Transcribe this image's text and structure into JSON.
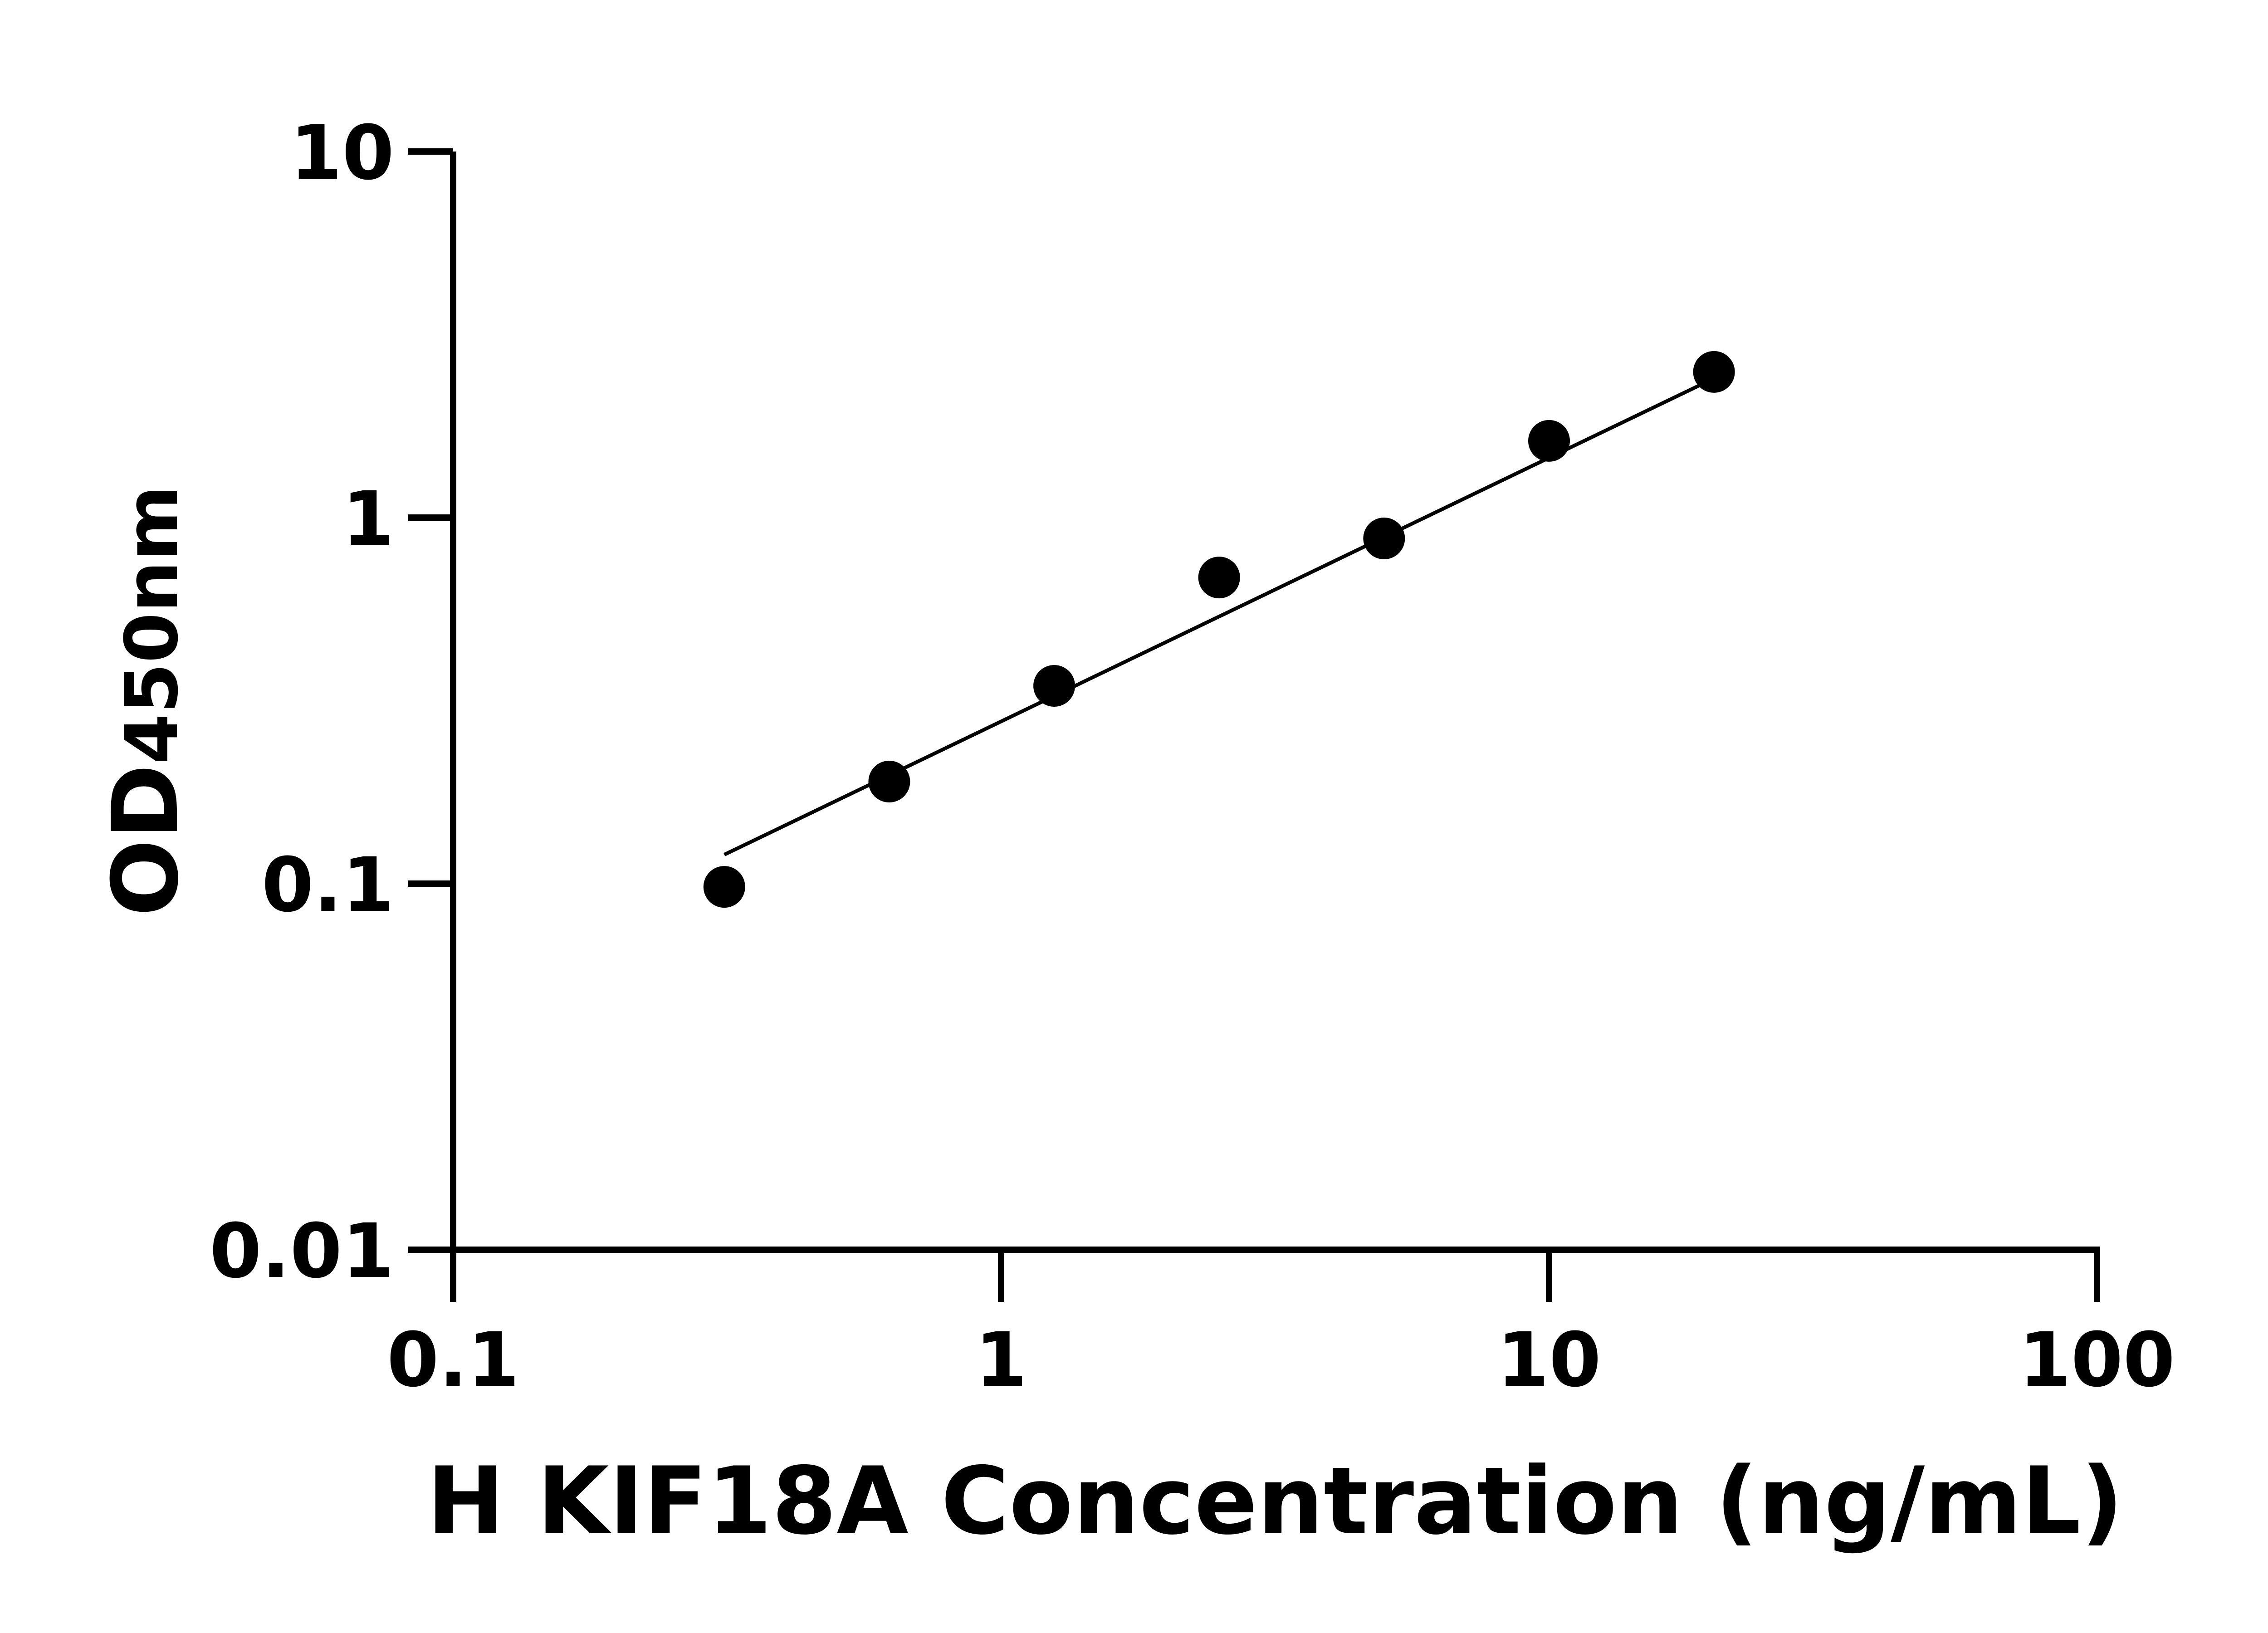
{
  "chart_data": {
    "type": "scatter",
    "title": "",
    "xlabel": "H KIF18A Concentration (ng/mL)",
    "ylabel_main": "OD",
    "ylabel_sub": "450nm",
    "x_scale": "log",
    "y_scale": "log",
    "xlim": [
      0.1,
      100
    ],
    "ylim": [
      0.01,
      10
    ],
    "x_ticks": [
      "0.1",
      "1",
      "10",
      "100"
    ],
    "y_ticks": [
      "0.01",
      "0.1",
      "1",
      "10"
    ],
    "grid": false,
    "points": [
      {
        "x": 0.3125,
        "y": 0.098
      },
      {
        "x": 0.625,
        "y": 0.19
      },
      {
        "x": 1.25,
        "y": 0.347
      },
      {
        "x": 2.5,
        "y": 0.686
      },
      {
        "x": 5,
        "y": 0.877
      },
      {
        "x": 10,
        "y": 1.62
      },
      {
        "x": 20,
        "y": 2.5
      }
    ],
    "fit_line": [
      {
        "x": 0.3125,
        "y": 0.12
      },
      {
        "x": 20,
        "y": 2.4
      }
    ],
    "marker_color": "#000000",
    "line_color": "#000000"
  }
}
